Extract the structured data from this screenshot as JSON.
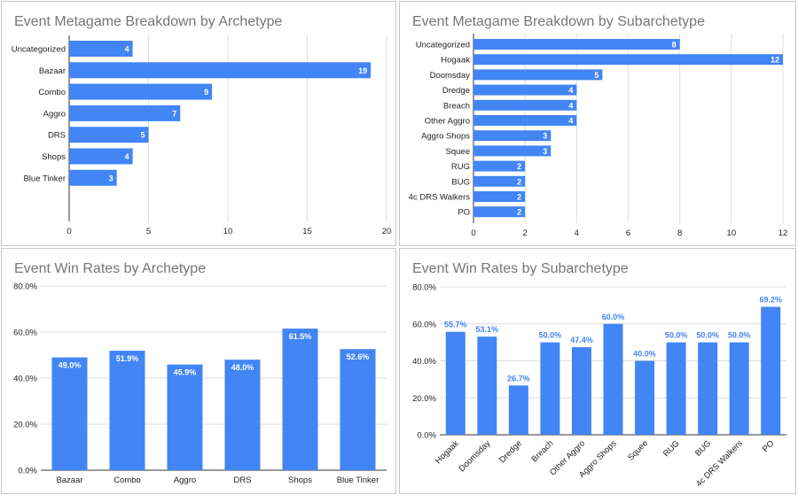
{
  "theme": {
    "bar_color": "#4285f4",
    "grid_color": "#dddddd",
    "title_color": "#757575",
    "outside_label_color": "#4285f4",
    "inside_label_color": "#ffffff"
  },
  "chart_data": [
    {
      "type": "bar",
      "orientation": "horizontal",
      "title": "Event Metagame Breakdown by Archetype",
      "categories": [
        "Uncategorized",
        "Bazaar",
        "Combo",
        "Aggro",
        "DRS",
        "Shops",
        "Blue Tinker"
      ],
      "values": [
        4,
        19,
        9,
        7,
        5,
        4,
        3
      ],
      "labels": [
        "4",
        "19",
        "9",
        "7",
        "5",
        "4",
        "3"
      ],
      "xlim": [
        0,
        20
      ],
      "ticks": [
        0,
        5,
        10,
        15,
        20
      ],
      "tick_labels": [
        "0",
        "5",
        "10",
        "15",
        "20"
      ],
      "grid": true
    },
    {
      "type": "bar",
      "orientation": "horizontal",
      "title": "Event Metagame Breakdown by Subarchetype",
      "categories": [
        "Uncategorized",
        "Hogaak",
        "Doomsday",
        "Dredge",
        "Breach",
        "Other Aggro",
        "Aggro Shops",
        "Squee",
        "RUG",
        "BUG",
        "4c DRS Walkers",
        "PO"
      ],
      "values": [
        8,
        12,
        5,
        4,
        4,
        4,
        3,
        3,
        2,
        2,
        2,
        2
      ],
      "labels": [
        "8",
        "12",
        "5",
        "4",
        "4",
        "4",
        "3",
        "3",
        "2",
        "2",
        "2",
        "2"
      ],
      "xlim": [
        0,
        12
      ],
      "ticks": [
        0,
        2,
        4,
        6,
        8,
        10,
        12
      ],
      "tick_labels": [
        "0",
        "2",
        "4",
        "6",
        "8",
        "10",
        "12"
      ],
      "grid": true
    },
    {
      "type": "bar",
      "orientation": "vertical",
      "title": "Event Win Rates by Archetype",
      "categories": [
        "Bazaar",
        "Combo",
        "Aggro",
        "DRS",
        "Shops",
        "Blue Tinker"
      ],
      "values": [
        49.0,
        51.9,
        45.9,
        48.0,
        61.5,
        52.6
      ],
      "labels": [
        "49.0%",
        "51.9%",
        "45.9%",
        "48.0%",
        "61.5%",
        "52.6%"
      ],
      "ylim": [
        0,
        80
      ],
      "ticks": [
        0,
        20,
        40,
        60,
        80
      ],
      "tick_labels": [
        "0.0%",
        "20.0%",
        "40.0%",
        "60.0%",
        "80.0%"
      ],
      "label_position": "inside",
      "grid": true
    },
    {
      "type": "bar",
      "orientation": "vertical",
      "title": "Event Win Rates by Subarchetype",
      "categories": [
        "Hogaak",
        "Doomsday",
        "Dredge",
        "Breach",
        "Other Aggro",
        "Aggro Shops",
        "Squee",
        "RUG",
        "BUG",
        "4c DRS Walkers",
        "PO"
      ],
      "values": [
        55.7,
        53.1,
        26.7,
        50.0,
        47.4,
        60.0,
        40.0,
        50.0,
        50.0,
        50.0,
        69.2
      ],
      "labels": [
        "55.7%",
        "53.1%",
        "26.7%",
        "50.0%",
        "47.4%",
        "60.0%",
        "40.0%",
        "50.0%",
        "50.0%",
        "50.0%",
        "69.2%"
      ],
      "ylim": [
        0,
        80
      ],
      "ticks": [
        0,
        20,
        40,
        60,
        80
      ],
      "tick_labels": [
        "0.0%",
        "20.0%",
        "40.0%",
        "60.0%",
        "80.0%"
      ],
      "label_position": "outside",
      "rotate_category_labels": true,
      "grid": true
    }
  ]
}
